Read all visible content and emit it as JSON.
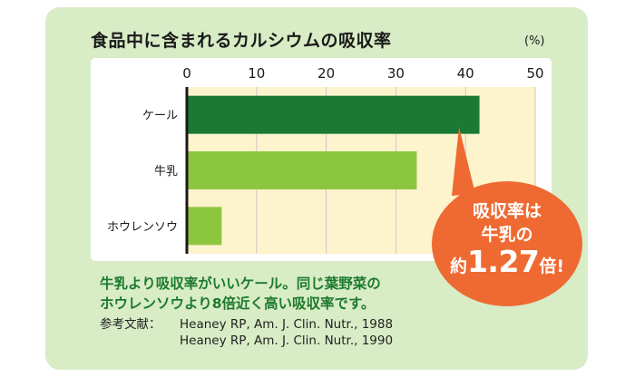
{
  "title": "食品中に含まれるカルシウムの吸収率",
  "unit_label": "(%)",
  "chart_data": {
    "type": "bar",
    "orientation": "horizontal",
    "title": "食品中に含まれるカルシウムの吸収率",
    "xlabel": "",
    "ylabel": "",
    "xlim": [
      0,
      50
    ],
    "ticks": [
      0,
      10,
      20,
      30,
      40,
      50
    ],
    "grid": true,
    "categories": [
      "ケール",
      "牛乳",
      "ホウレンソウ"
    ],
    "values": [
      42,
      33,
      5
    ],
    "colors": [
      "#1a7a33",
      "#8cc63f",
      "#8cc63f"
    ]
  },
  "callout": {
    "line1": "吸収率は",
    "line2": "牛乳の",
    "line3_prefix": "約",
    "line3_number": "1.27",
    "line3_suffix": "倍!",
    "color": "#ee6a32"
  },
  "caption": {
    "line1": "牛乳より吸収率がいいケール。同じ葉野菜の",
    "line2": "ホウレンソウより8倍近く高い吸収率です。"
  },
  "references": {
    "label": "参考文献：",
    "items": [
      "Heaney RP, Am. J. Clin. Nutr., 1988",
      "Heaney RP, Am. J. Clin. Nutr., 1990"
    ]
  }
}
